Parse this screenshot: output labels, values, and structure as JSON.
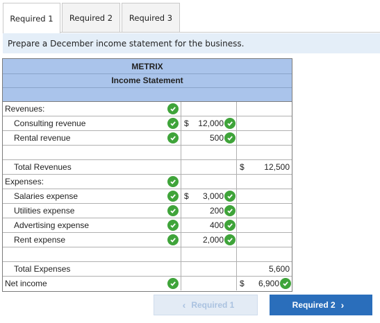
{
  "tabs": [
    {
      "label": "Required 1",
      "active": true
    },
    {
      "label": "Required 2",
      "active": false
    },
    {
      "label": "Required 3",
      "active": false
    }
  ],
  "instruction": "Prepare a December income statement for the business.",
  "statement": {
    "company": "METRIX",
    "title": "Income Statement",
    "rows": {
      "revenues": {
        "label": "Revenues:"
      },
      "consulting": {
        "label": "Consulting revenue",
        "dollar": "$",
        "amount": "12,000"
      },
      "rental": {
        "label": "Rental revenue",
        "amount": "500"
      },
      "total_revenues": {
        "label": "Total Revenues",
        "dollar": "$",
        "total": "12,500"
      },
      "expenses": {
        "label": "Expenses:"
      },
      "salaries": {
        "label": "Salaries expense",
        "dollar": "$",
        "amount": "3,000"
      },
      "utilities": {
        "label": "Utilities expense",
        "amount": "200"
      },
      "advertising": {
        "label": "Advertising expense",
        "amount": "400"
      },
      "rent": {
        "label": "Rent expense",
        "amount": "2,000"
      },
      "total_expenses": {
        "label": "Total Expenses",
        "total": "5,600"
      },
      "net_income": {
        "label": "Net income",
        "dollar": "$",
        "total": "6,900"
      }
    }
  },
  "nav": {
    "prev_label": "Required 1",
    "next_label": "Required 2",
    "prev_arrow": "‹",
    "next_arrow": "›"
  },
  "colors": {
    "check": "#3fa43a",
    "header_bg": "#aac4eb",
    "banner_bg": "#e4eef8",
    "next_button": "#2a6ebb"
  }
}
